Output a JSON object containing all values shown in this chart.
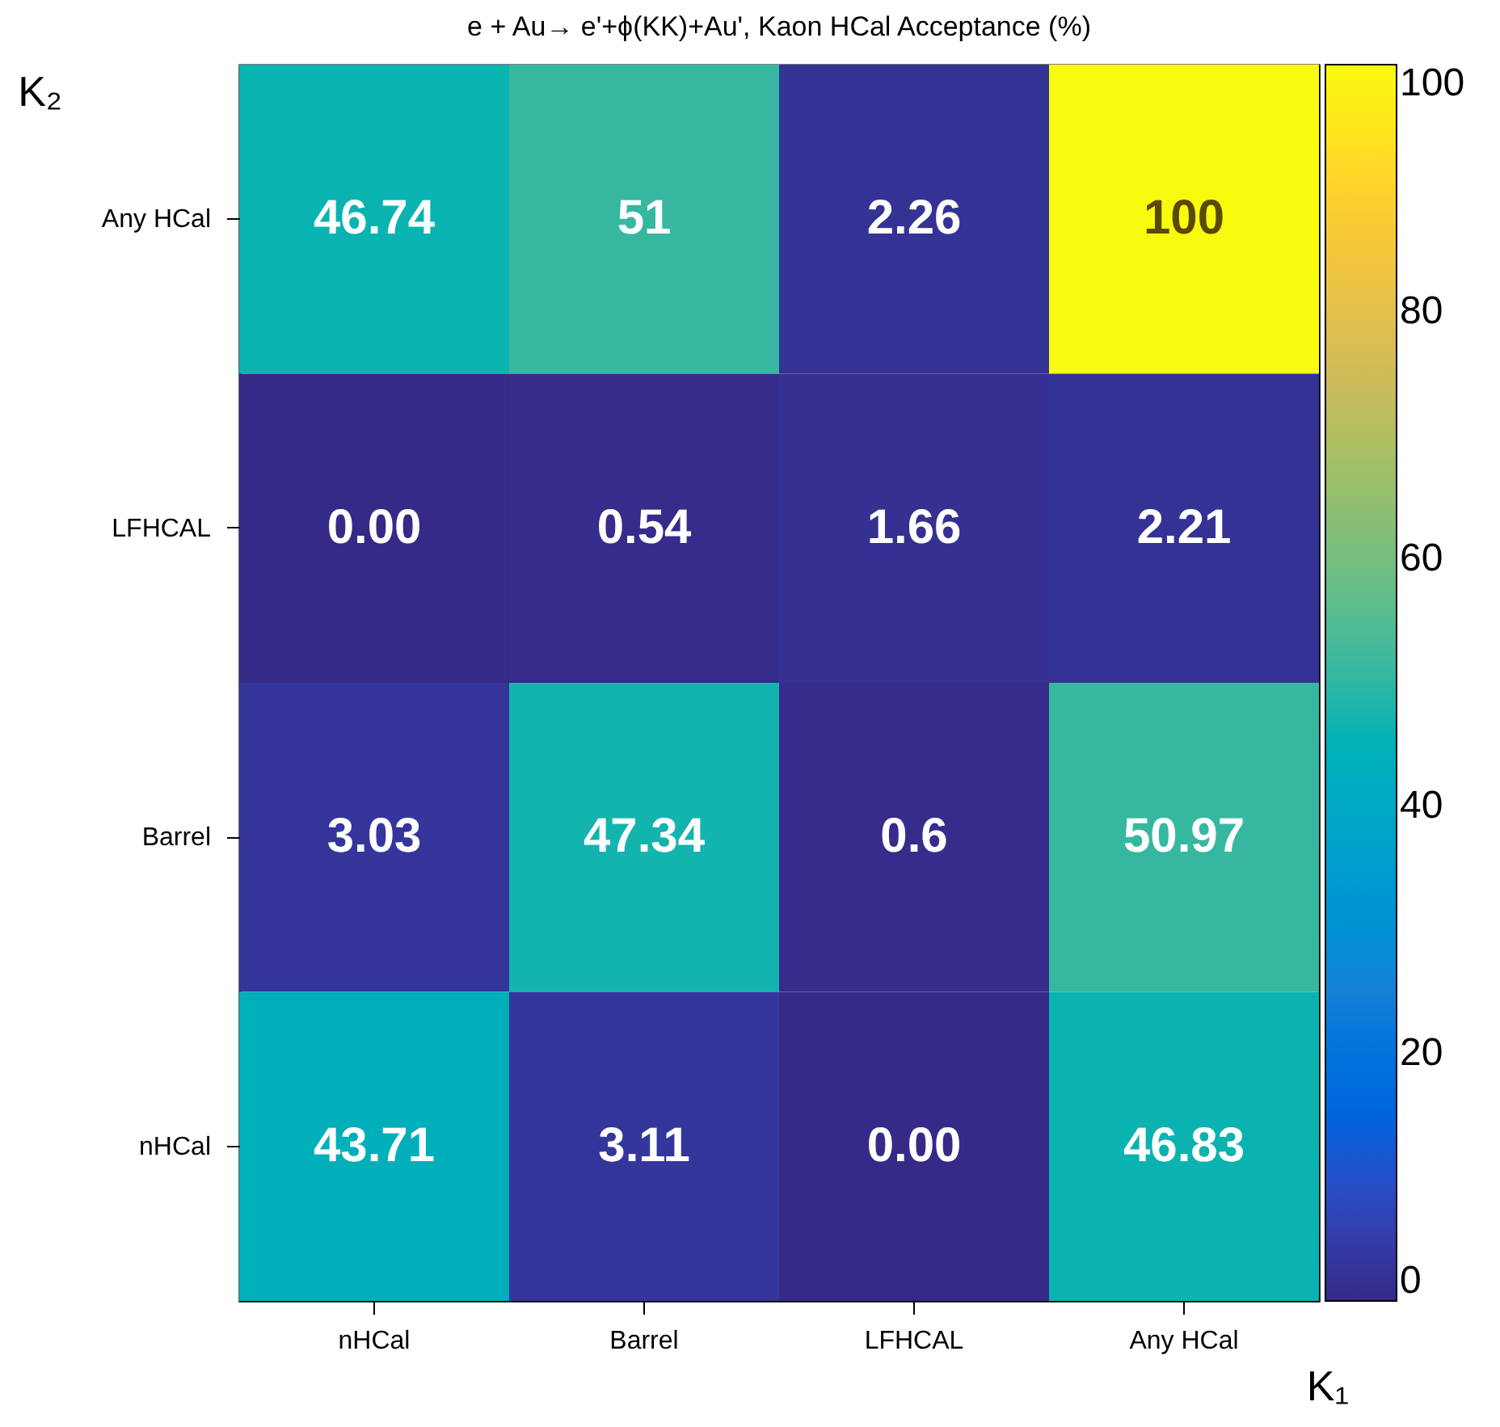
{
  "chart_data": {
    "type": "heatmap",
    "title": "e + Au→ e'+ϕ(KK)+Au', Kaon HCal Acceptance (%)",
    "xlabel": "K₁",
    "ylabel": "K₂",
    "categories": [
      "nHCal",
      "Barrel",
      "LFHCAL",
      "Any HCal"
    ],
    "y_categories": [
      "Any HCal",
      "LFHCAL",
      "Barrel",
      "nHCal"
    ],
    "cells": [
      [
        46.74,
        51,
        2.26,
        100
      ],
      [
        0,
        0.54,
        1.66,
        2.21
      ],
      [
        3.03,
        47.34,
        0.6,
        50.97
      ],
      [
        43.71,
        3.11,
        0,
        46.83
      ]
    ],
    "cell_labels": [
      [
        "46.74",
        "51",
        "2.26",
        "100"
      ],
      [
        "0.00",
        "0.54",
        "1.66",
        "2.21"
      ],
      [
        "3.03",
        "47.34",
        "0.6",
        "50.97"
      ],
      [
        "43.71",
        "3.11",
        "0.00",
        "46.83"
      ]
    ],
    "clim": [
      0,
      100
    ],
    "cticks": [
      0,
      20,
      40,
      60,
      80,
      100
    ]
  }
}
